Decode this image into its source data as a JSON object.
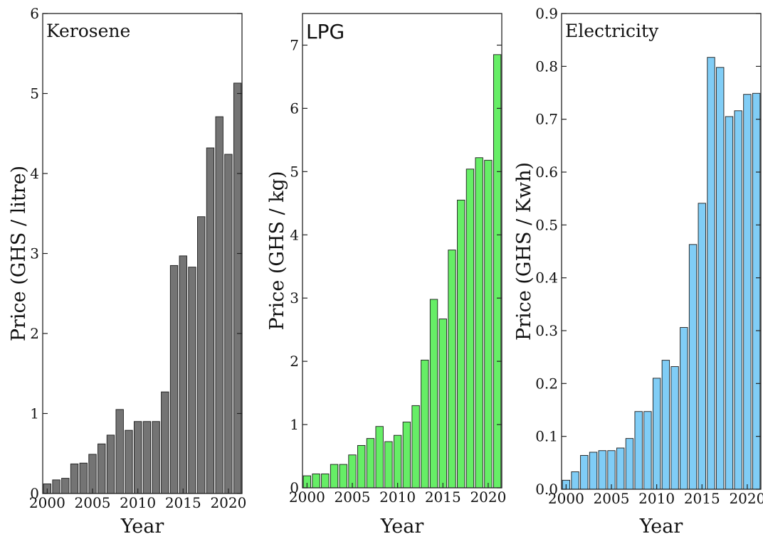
{
  "chart_data": [
    {
      "type": "bar",
      "title": "Kerosene",
      "xlabel": "Year",
      "ylabel": "Price (GHS / litre)",
      "x": [
        2000,
        2001,
        2002,
        2003,
        2004,
        2005,
        2006,
        2007,
        2008,
        2009,
        2010,
        2011,
        2012,
        2013,
        2014,
        2015,
        2016,
        2017,
        2018,
        2019,
        2020,
        2021
      ],
      "values": [
        0.12,
        0.17,
        0.19,
        0.37,
        0.38,
        0.49,
        0.62,
        0.73,
        1.05,
        0.79,
        0.9,
        0.9,
        0.9,
        1.27,
        2.85,
        2.97,
        2.83,
        3.46,
        4.32,
        4.71,
        4.24,
        5.13
      ],
      "ylim": [
        0,
        6
      ],
      "xlim": [
        1999.5,
        2021.5
      ],
      "yticks": [
        "0",
        "1",
        "2",
        "3",
        "4",
        "5",
        "6"
      ],
      "xticks": [
        "2000",
        "2005",
        "2010",
        "2015",
        "2020"
      ],
      "bar_color": "#747474",
      "grid": false
    },
    {
      "type": "bar",
      "title": "LPG",
      "xlabel": "Year",
      "ylabel": "Price (GHS / kg)",
      "x": [
        2000,
        2001,
        2002,
        2003,
        2004,
        2005,
        2006,
        2007,
        2008,
        2009,
        2010,
        2011,
        2012,
        2013,
        2014,
        2015,
        2016,
        2017,
        2018,
        2019,
        2020,
        2021
      ],
      "values": [
        0.19,
        0.22,
        0.22,
        0.37,
        0.37,
        0.52,
        0.67,
        0.78,
        0.97,
        0.73,
        0.83,
        1.04,
        1.3,
        2.02,
        2.98,
        2.67,
        3.76,
        4.55,
        5.04,
        5.22,
        5.18,
        6.85
      ],
      "ylim": [
        0,
        7.5
      ],
      "xlim": [
        1999.5,
        2021.5
      ],
      "yticks": [
        "0",
        "1",
        "2",
        "3",
        "4",
        "5",
        "6",
        "7"
      ],
      "xticks": [
        "2000",
        "2005",
        "2010",
        "2015",
        "2020"
      ],
      "bar_color": "#66ee66",
      "grid": false
    },
    {
      "type": "bar",
      "title": "Electricity",
      "xlabel": "Year",
      "ylabel": "Price (GHS / Kwh)",
      "x": [
        2000,
        2001,
        2002,
        2003,
        2004,
        2005,
        2006,
        2007,
        2008,
        2009,
        2010,
        2011,
        2012,
        2013,
        2014,
        2015,
        2016,
        2017,
        2018,
        2019,
        2020,
        2021
      ],
      "values": [
        0.017,
        0.033,
        0.064,
        0.07,
        0.073,
        0.073,
        0.078,
        0.096,
        0.147,
        0.147,
        0.21,
        0.244,
        0.232,
        0.306,
        0.463,
        0.541,
        0.817,
        0.798,
        0.705,
        0.716,
        0.747,
        0.749
      ],
      "ylim": [
        0,
        0.9
      ],
      "xlim": [
        1999.5,
        2021.5
      ],
      "yticks": [
        "0.0",
        "0.1",
        "0.2",
        "0.3",
        "0.4",
        "0.5",
        "0.6",
        "0.7",
        "0.8",
        "0.9"
      ],
      "xticks": [
        "2000",
        "2005",
        "2010",
        "2015",
        "2020"
      ],
      "bar_color": "#80cdf6",
      "grid": false
    }
  ]
}
